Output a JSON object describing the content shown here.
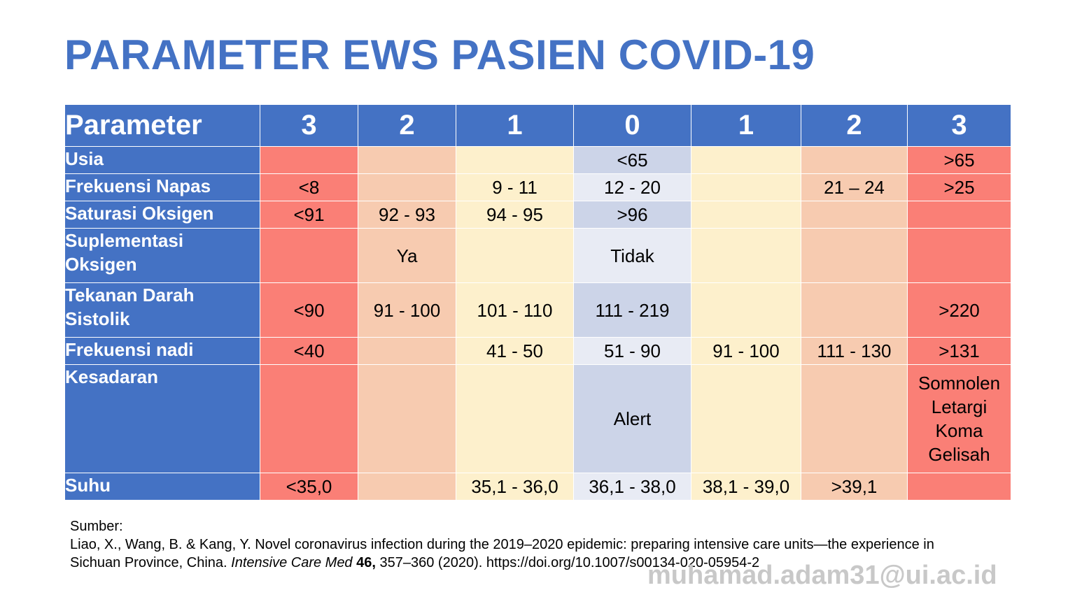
{
  "title": "PARAMETER EWS PASIEN COVID-19",
  "table": {
    "headers": [
      "Parameter",
      "3",
      "2",
      "1",
      "0",
      "1",
      "2",
      "3"
    ],
    "rows": [
      {
        "label": "Usia",
        "cells": [
          "",
          "",
          "",
          "<65",
          "",
          "",
          ">65"
        ]
      },
      {
        "label": "Frekuensi Napas",
        "cells": [
          "<8",
          "",
          "9 - 11",
          "12 - 20",
          "",
          "21 – 24",
          ">25"
        ]
      },
      {
        "label": "Saturasi Oksigen",
        "cells": [
          "<91",
          "92 - 93",
          "94 - 95",
          ">96",
          "",
          "",
          ""
        ]
      },
      {
        "label": "Suplementasi Oksigen",
        "cells": [
          "",
          "Ya",
          "",
          "Tidak",
          "",
          "",
          ""
        ]
      },
      {
        "label": "Tekanan Darah Sistolik",
        "cells": [
          "<90",
          "91 - 100",
          "101 - 110",
          "111 - 219",
          "",
          "",
          ">220"
        ]
      },
      {
        "label": "Frekuensi nadi",
        "cells": [
          "<40",
          "",
          "41 - 50",
          "51 - 90",
          "91 - 100",
          "111 - 130",
          ">131"
        ]
      },
      {
        "label": "Kesadaran",
        "cells": [
          "",
          "",
          "",
          "Alert",
          "",
          "",
          ""
        ],
        "consciousness_lines": [
          "Somnolen",
          "Letargi",
          "Koma",
          "Gelisah"
        ]
      },
      {
        "label": "Suhu",
        "cells": [
          "<35,0",
          "",
          "35,1 - 36,0",
          "36,1 - 38,0",
          "38,1 - 39,0",
          ">39,1",
          ""
        ]
      }
    ]
  },
  "source": {
    "heading": "Sumber:",
    "line1": "Liao, X., Wang, B. & Kang, Y. Novel coronavirus infection during the 2019–2020 epidemic: preparing intensive care units—the experience in",
    "line2_prefix": "Sichuan Province, China. ",
    "journal": "Intensive Care Med",
    "volume": "46,",
    "line2_suffix": " 357–360 (2020). https://doi.org/10.1007/s00134-020-05954-2"
  },
  "watermark": "muhamad.adam31@ui.ac.id",
  "colors": {
    "header_blue": "#4472c4",
    "score3": "#fa7f76",
    "score2": "#f7cbb0",
    "score1": "#fdf0cc",
    "score0_dark": "#ccd4e8",
    "score0_light": "#e8ebf4"
  }
}
